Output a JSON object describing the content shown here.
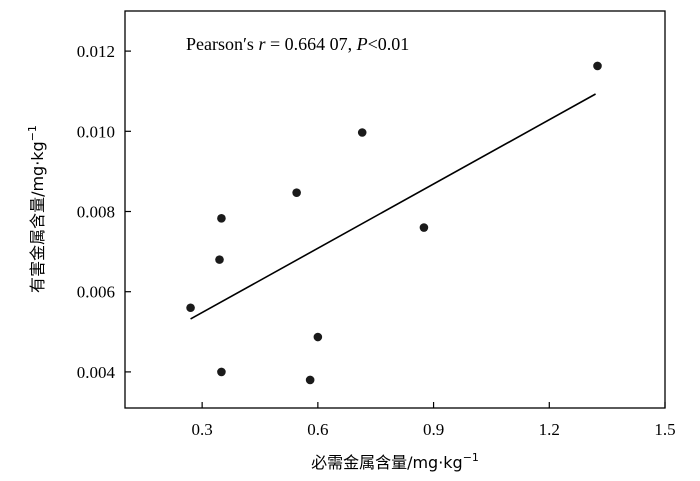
{
  "chart_data": {
    "type": "scatter",
    "xlabel": "必需金属含量/mg·kg",
    "xlabel_sup": "−1",
    "ylabel": "有害金属含量/mg·kg",
    "ylabel_sup": "−1",
    "xlim": [
      0.1,
      1.5
    ],
    "ylim": [
      0.0031,
      0.013
    ],
    "x_ticks": [
      0.3,
      0.6,
      0.9,
      1.2,
      1.5
    ],
    "x_tick_labels": [
      "0.3",
      "0.6",
      "0.9",
      "1.2",
      "1.5"
    ],
    "y_ticks": [
      0.004,
      0.006,
      0.008,
      0.01,
      0.012
    ],
    "y_tick_labels": [
      "0.004",
      "0.006",
      "0.008",
      "0.010",
      "0.012"
    ],
    "grid": false,
    "annotation": {
      "prefix": "Pearson′s ",
      "r_symbol": "r",
      "r_value": " = 0.664 07, ",
      "p_symbol": "P",
      "p_value": "<0.01"
    },
    "points": [
      {
        "x": 0.27,
        "y": 0.0056
      },
      {
        "x": 0.345,
        "y": 0.0068
      },
      {
        "x": 0.35,
        "y": 0.00783
      },
      {
        "x": 0.35,
        "y": 0.004
      },
      {
        "x": 0.545,
        "y": 0.00847
      },
      {
        "x": 0.58,
        "y": 0.0038
      },
      {
        "x": 0.6,
        "y": 0.00487
      },
      {
        "x": 0.715,
        "y": 0.00997
      },
      {
        "x": 0.875,
        "y": 0.0076
      },
      {
        "x": 1.325,
        "y": 0.01163
      }
    ],
    "fit_line": {
      "x": [
        0.27,
        1.32
      ],
      "y": [
        0.00532,
        0.01093
      ]
    }
  }
}
